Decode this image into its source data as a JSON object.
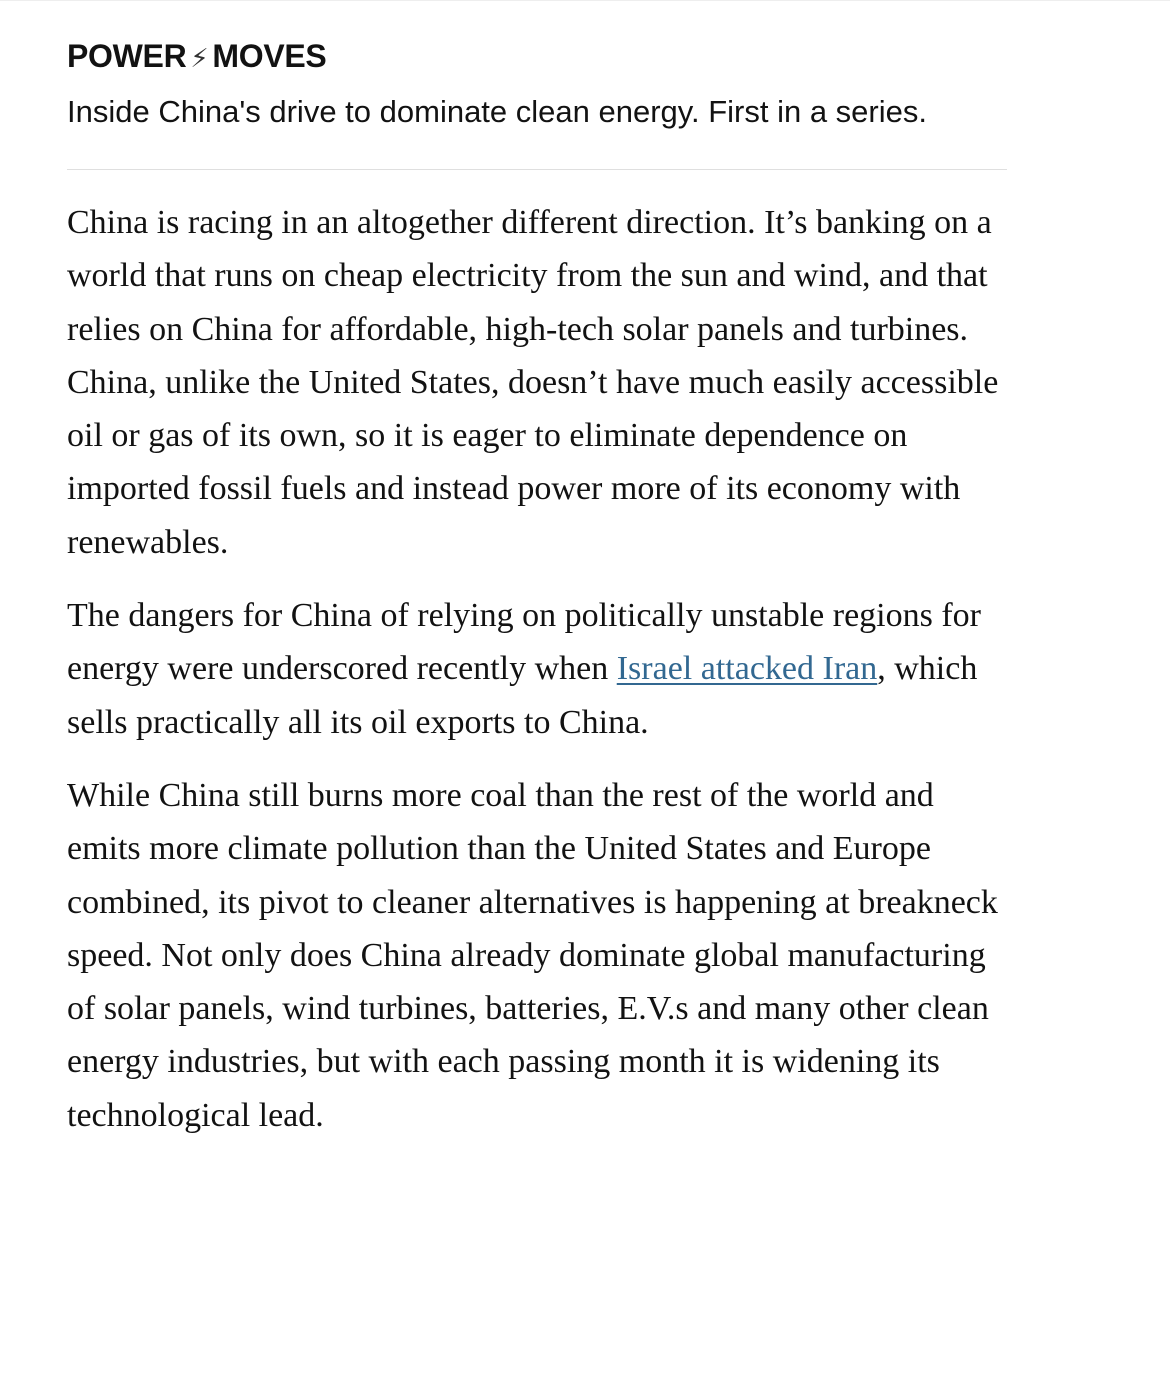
{
  "header": {
    "kicker_left": "POWER",
    "kicker_icon": "lightning-bolt-icon",
    "kicker_right": "MOVES",
    "dek": "Inside China's drive to dominate clean energy. First in a series."
  },
  "article": {
    "p1": "China is racing in an altogether different direction. It’s banking on a world that runs on cheap electricity from the sun and wind, and that relies on China for affordable, high-tech solar panels and turbines. China, unlike the United States, doesn’t have much easily accessible oil or gas of its own, so it is eager to eliminate dependence on imported fossil fuels and instead power more of its economy with renewables.",
    "p2_before": "The dangers for China of relying on politically unstable regions for energy were underscored recently when ",
    "p2_link": "Israel attacked Iran",
    "p2_after": ", which sells practically all its oil exports to China.",
    "p3": "While China still burns more coal than the rest of the world and emits more climate pollution than the United States and Europe combined, its pivot to cleaner alternatives is happening at breakneck speed. Not only does China already dominate global manufacturing of solar panels, wind turbines, batteries, E.V.s and many other clean energy industries, but with each passing month it is widening its technological lead."
  },
  "colors": {
    "link": "#326891",
    "text": "#121212"
  }
}
